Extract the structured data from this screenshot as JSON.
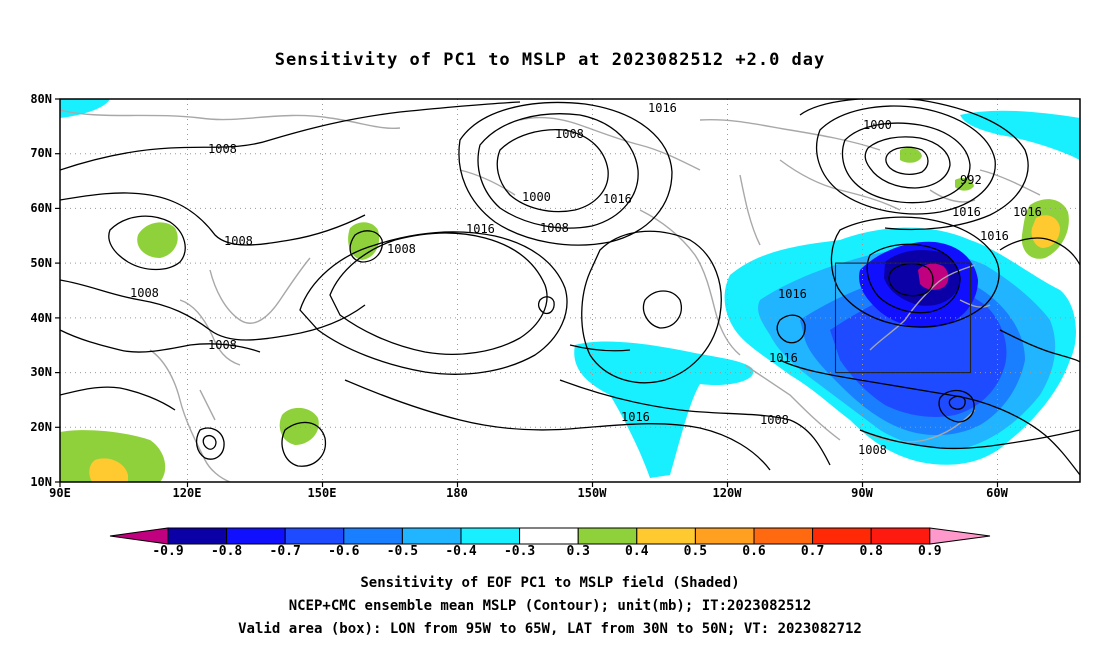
{
  "title": "Sensitivity of PC1 to MSLP at 2023082512 +2.0 day",
  "lat_labels": [
    "80N",
    "70N",
    "60N",
    "50N",
    "40N",
    "30N",
    "20N",
    "10N"
  ],
  "lon_labels": [
    "90E",
    "120E",
    "150E",
    "180",
    "150W",
    "120W",
    "90W",
    "60W"
  ],
  "contour_labels": [
    {
      "text": "1016",
      "key": "c1"
    },
    {
      "text": "1008",
      "key": "c2"
    },
    {
      "text": "1000",
      "key": "c3"
    },
    {
      "text": "992",
      "key": "c4"
    },
    {
      "text": "1008",
      "key": "c5"
    },
    {
      "text": "1016",
      "key": "c6"
    },
    {
      "text": "1016",
      "key": "c7"
    },
    {
      "text": "1008",
      "key": "c8"
    },
    {
      "text": "1000",
      "key": "c9"
    },
    {
      "text": "1016",
      "key": "c10"
    },
    {
      "text": "1008",
      "key": "c11"
    },
    {
      "text": "1016",
      "key": "c12"
    },
    {
      "text": "1008",
      "key": "c13"
    },
    {
      "text": "1016",
      "key": "c14"
    },
    {
      "text": "1008",
      "key": "c15"
    },
    {
      "text": "1008",
      "key": "c16"
    },
    {
      "text": "1016",
      "key": "c17"
    },
    {
      "text": "1016",
      "key": "c18"
    },
    {
      "text": "1008",
      "key": "c19"
    },
    {
      "text": "1016",
      "key": "c20"
    },
    {
      "text": "1008",
      "key": "c21"
    }
  ],
  "colorbar": {
    "colors": [
      "#c0007f",
      "#0a00a6",
      "#1010ff",
      "#1e4bff",
      "#1a7fff",
      "#22b5ff",
      "#19f0ff",
      "#ffffff",
      "#8fd13a",
      "#ffc930",
      "#ffa020",
      "#ff6a10",
      "#ff2a05",
      "#ff1a10",
      "#ff99cc"
    ],
    "labels": [
      "-0.9",
      "-0.8",
      "-0.7",
      "-0.6",
      "-0.5",
      "-0.4",
      "-0.3",
      "0.3",
      "0.4",
      "0.5",
      "0.6",
      "0.7",
      "0.8",
      "0.9"
    ]
  },
  "footer": {
    "line1": "Sensitivity of EOF PC1 to MSLP field (Shaded)",
    "line2": "NCEP+CMC ensemble mean MSLP (Contour); unit(mb); IT:2023082512",
    "line3": "Valid area (box): LON from 95W to 65W, LAT from 30N to 50N; VT: 2023082712"
  }
}
